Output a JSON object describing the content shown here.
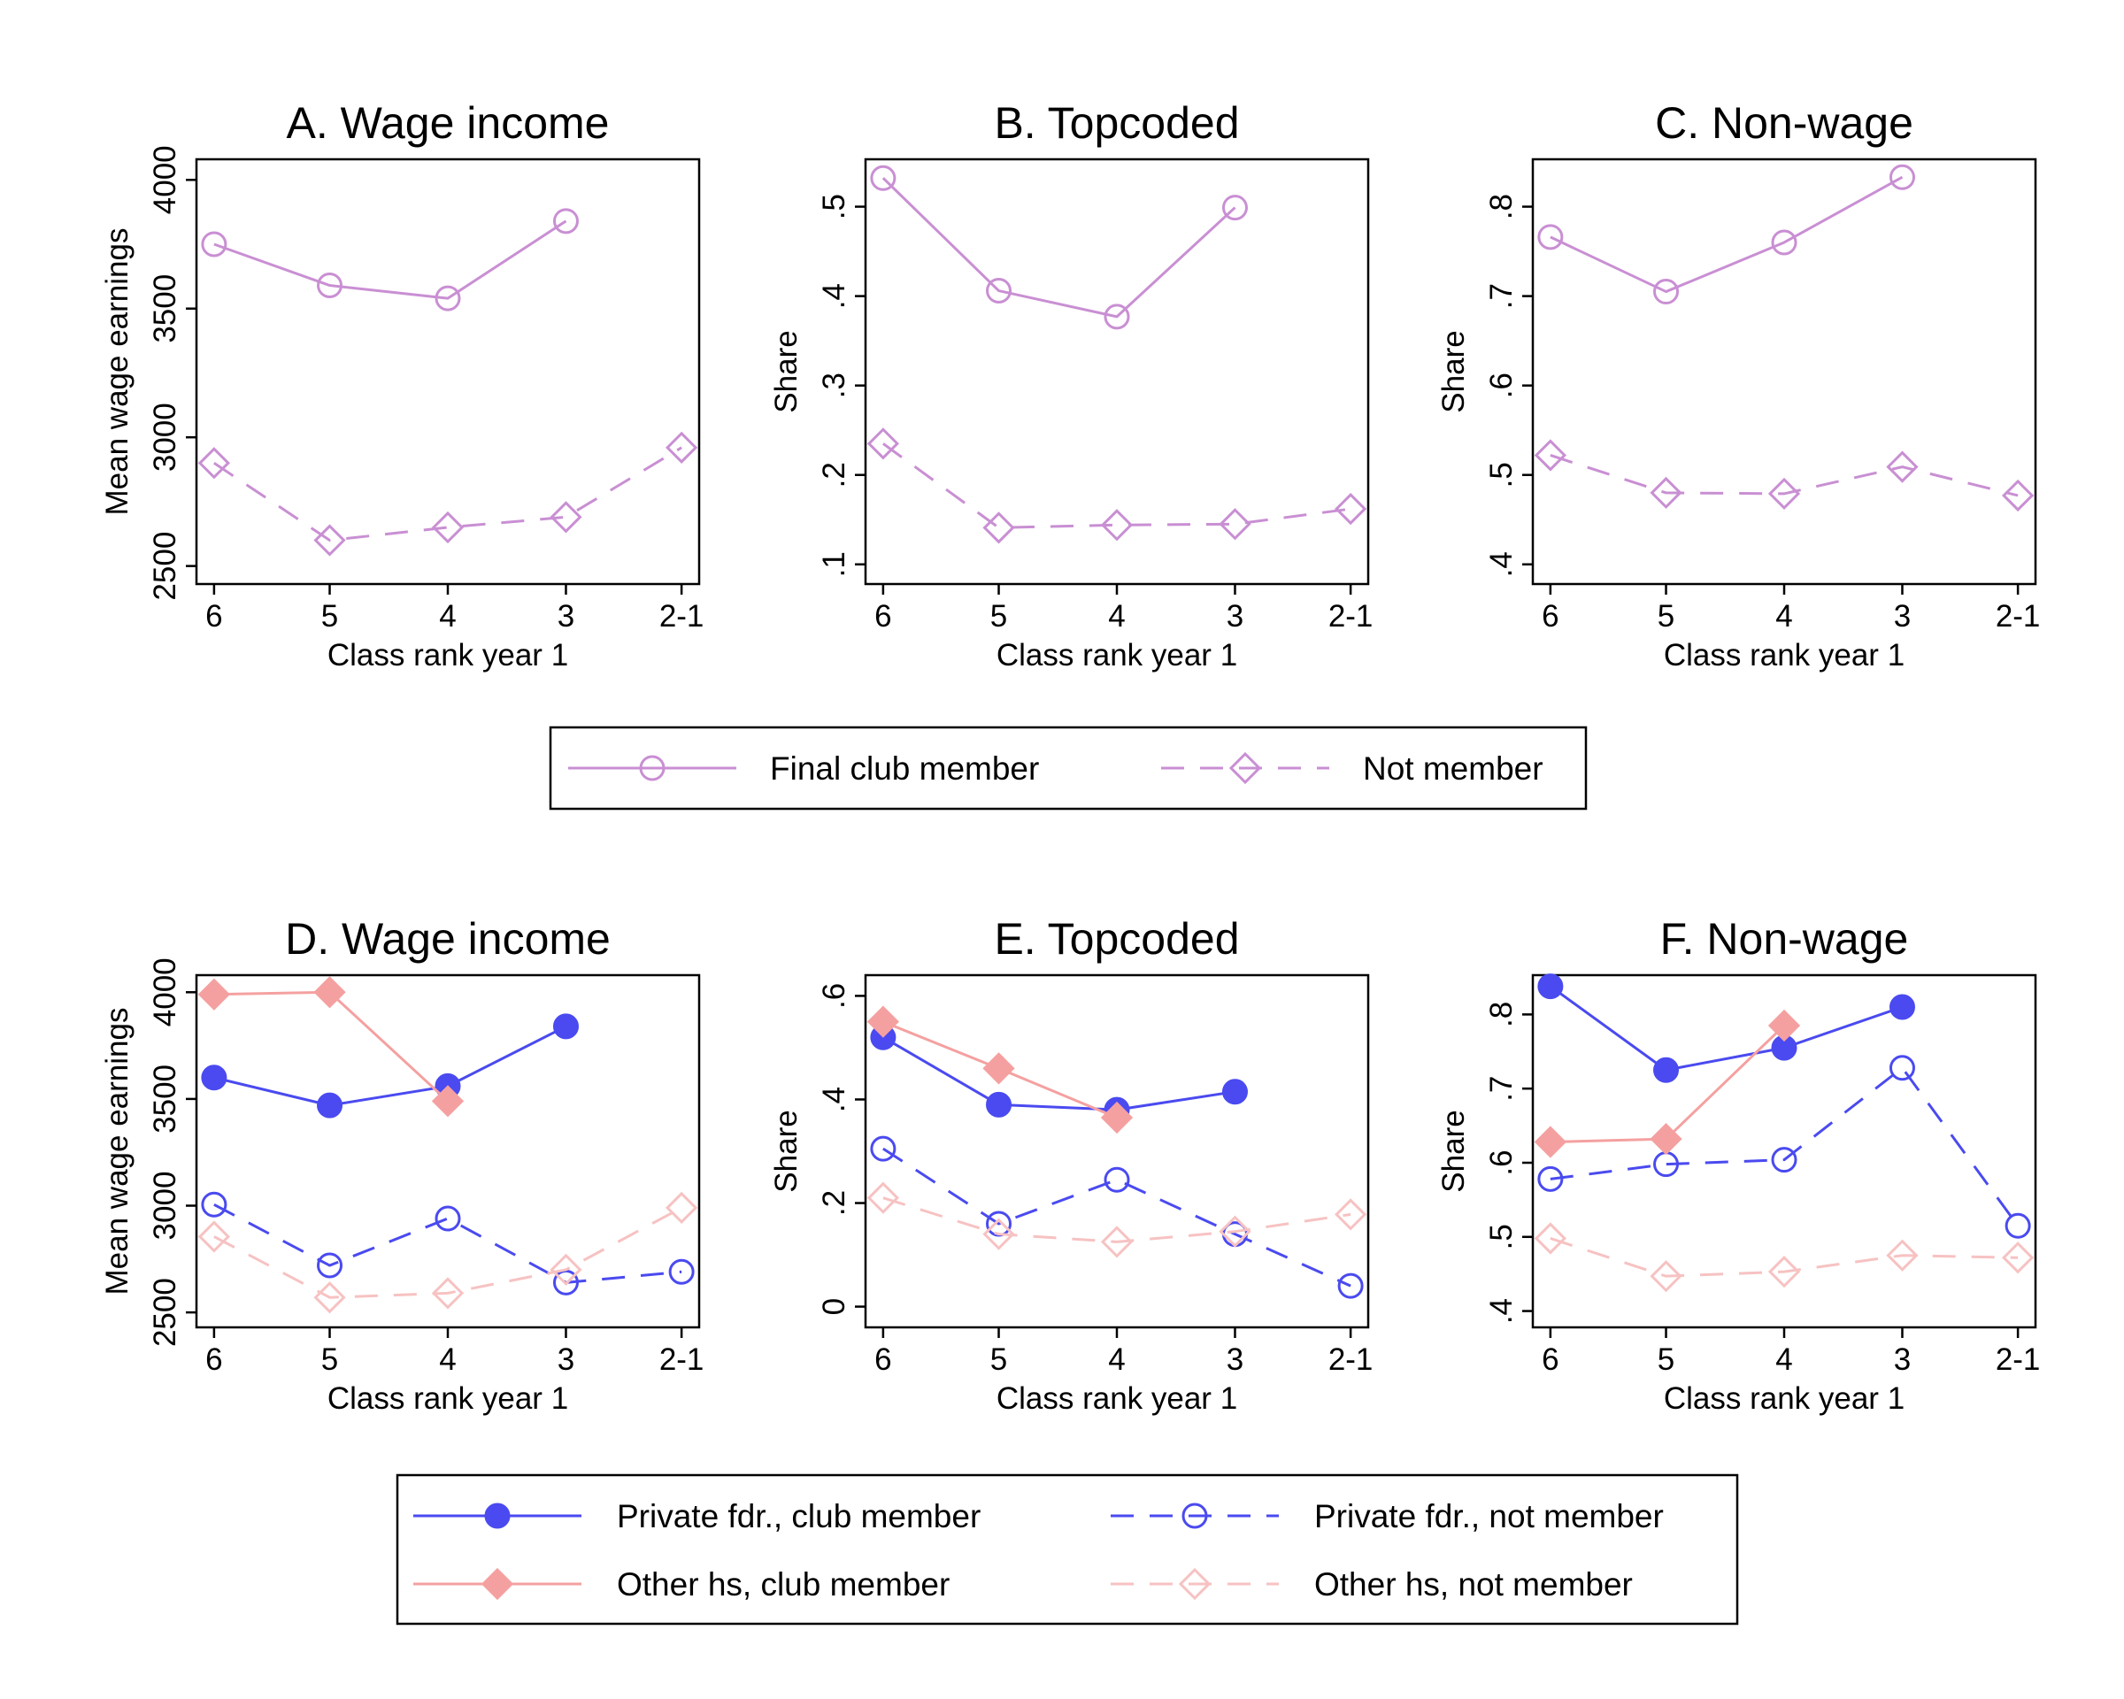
{
  "colors": {
    "violet": "#c98fd3",
    "blue": "#4a4af0",
    "pink": "#f5a0a0",
    "pink_light": "#f7c2c2"
  },
  "shared_x_categories": [
    "6",
    "5",
    "4",
    "3",
    "2-1"
  ],
  "chart_data": [
    {
      "type": "line",
      "title": "A. Wage income",
      "xlabel": "Class rank year 1",
      "ylabel": "Mean wage earnings",
      "categories": [
        "6",
        "5",
        "4",
        "3",
        "2-1"
      ],
      "ylim": [
        2430,
        4080
      ],
      "yticks": [
        2500,
        3000,
        3500,
        4000
      ],
      "ytick_labels": [
        "2500",
        "3000",
        "3500",
        "4000"
      ],
      "grid": false,
      "series": [
        {
          "name": "Final club member",
          "color": "violet",
          "dash": "solid",
          "marker": "circle-open",
          "values": [
            3750,
            3590,
            3540,
            3840,
            null
          ]
        },
        {
          "name": "Not member",
          "color": "violet",
          "dash": "dashed",
          "marker": "diamond-open",
          "values": [
            2900,
            2600,
            2650,
            2690,
            2960
          ]
        }
      ]
    },
    {
      "type": "line",
      "title": "B. Topcoded",
      "xlabel": "Class rank year 1",
      "ylabel": "Share",
      "categories": [
        "6",
        "5",
        "4",
        "3",
        "2-1"
      ],
      "ylim": [
        0.078,
        0.553
      ],
      "yticks": [
        0.1,
        0.2,
        0.3,
        0.4,
        0.5
      ],
      "ytick_labels": [
        ".1",
        ".2",
        ".3",
        ".4",
        ".5"
      ],
      "grid": false,
      "series": [
        {
          "name": "Final club member",
          "color": "violet",
          "dash": "solid",
          "marker": "circle-open",
          "values": [
            0.532,
            0.406,
            0.377,
            0.499,
            null
          ]
        },
        {
          "name": "Not member",
          "color": "violet",
          "dash": "dashed",
          "marker": "diamond-open",
          "values": [
            0.235,
            0.141,
            0.144,
            0.145,
            0.162
          ]
        }
      ]
    },
    {
      "type": "line",
      "title": "C. Non-wage",
      "xlabel": "Class rank year 1",
      "ylabel": "Share",
      "categories": [
        "6",
        "5",
        "4",
        "3",
        "2-1"
      ],
      "ylim": [
        0.378,
        0.853
      ],
      "yticks": [
        0.4,
        0.5,
        0.6,
        0.7,
        0.8
      ],
      "ytick_labels": [
        ".4",
        ".5",
        ".6",
        ".7",
        ".8"
      ],
      "grid": false,
      "series": [
        {
          "name": "Final club member",
          "color": "violet",
          "dash": "solid",
          "marker": "circle-open",
          "values": [
            0.766,
            0.705,
            0.76,
            0.833,
            null
          ]
        },
        {
          "name": "Not member",
          "color": "violet",
          "dash": "dashed",
          "marker": "diamond-open",
          "values": [
            0.522,
            0.48,
            0.479,
            0.509,
            0.477
          ]
        }
      ]
    },
    {
      "type": "line",
      "title": "D. Wage income",
      "xlabel": "Class rank year 1",
      "ylabel": "Mean wage earnings",
      "categories": [
        "6",
        "5",
        "4",
        "3",
        "2-1"
      ],
      "ylim": [
        2430,
        4080
      ],
      "yticks": [
        2500,
        3000,
        3500,
        4000
      ],
      "ytick_labels": [
        "2500",
        "3000",
        "3500",
        "4000"
      ],
      "grid": false,
      "series": [
        {
          "name": "Private fdr., club member",
          "color": "blue",
          "dash": "solid",
          "marker": "circle-filled",
          "values": [
            3600,
            3470,
            3560,
            3840,
            null
          ]
        },
        {
          "name": "Private fdr., not member",
          "color": "blue",
          "dash": "dashed",
          "marker": "circle-open",
          "values": [
            3005,
            2720,
            2940,
            2640,
            2690
          ]
        },
        {
          "name": "Other hs, club member",
          "color": "pink",
          "dash": "solid",
          "marker": "diamond-filled",
          "values": [
            3990,
            4000,
            3490,
            null,
            null
          ]
        },
        {
          "name": "Other hs, not member",
          "color": "pink_light",
          "dash": "dashed",
          "marker": "diamond-open",
          "values": [
            2855,
            2570,
            2590,
            2700,
            2990
          ]
        }
      ]
    },
    {
      "type": "line",
      "title": "E. Topcoded",
      "xlabel": "Class rank year 1",
      "ylabel": "Share",
      "categories": [
        "6",
        "5",
        "4",
        "3",
        "2-1"
      ],
      "ylim": [
        -0.04,
        0.64
      ],
      "yticks": [
        0,
        0.2,
        0.4,
        0.6
      ],
      "ytick_labels": [
        "0",
        ".2",
        ".4",
        ".6"
      ],
      "grid": false,
      "series": [
        {
          "name": "Private fdr., club member",
          "color": "blue",
          "dash": "solid",
          "marker": "circle-filled",
          "values": [
            0.52,
            0.39,
            0.38,
            0.415,
            null
          ]
        },
        {
          "name": "Private fdr., not member",
          "color": "blue",
          "dash": "dashed",
          "marker": "circle-open",
          "values": [
            0.305,
            0.16,
            0.245,
            0.14,
            0.04
          ]
        },
        {
          "name": "Other hs, club member",
          "color": "pink",
          "dash": "solid",
          "marker": "diamond-filled",
          "values": [
            0.55,
            0.46,
            0.365,
            null,
            null
          ]
        },
        {
          "name": "Other hs, not member",
          "color": "pink_light",
          "dash": "dashed",
          "marker": "diamond-open",
          "values": [
            0.21,
            0.14,
            0.125,
            0.145,
            0.178
          ]
        }
      ]
    },
    {
      "type": "line",
      "title": "F. Non-wage",
      "xlabel": "Class rank year 1",
      "ylabel": "Share",
      "categories": [
        "6",
        "5",
        "4",
        "3",
        "2-1"
      ],
      "ylim": [
        0.378,
        0.853
      ],
      "yticks": [
        0.4,
        0.5,
        0.6,
        0.7,
        0.8
      ],
      "ytick_labels": [
        ".4",
        ".5",
        ".6",
        ".7",
        ".8"
      ],
      "grid": false,
      "series": [
        {
          "name": "Private fdr., club member",
          "color": "blue",
          "dash": "solid",
          "marker": "circle-filled",
          "values": [
            0.838,
            0.725,
            0.755,
            0.81,
            null
          ]
        },
        {
          "name": "Private fdr., not member",
          "color": "blue",
          "dash": "dashed",
          "marker": "circle-open",
          "values": [
            0.578,
            0.598,
            0.604,
            0.728,
            0.515
          ]
        },
        {
          "name": "Other hs, club member",
          "color": "pink",
          "dash": "solid",
          "marker": "diamond-filled",
          "values": [
            0.628,
            0.632,
            0.785,
            null,
            null
          ]
        },
        {
          "name": "Other hs, not member",
          "color": "pink_light",
          "dash": "dashed",
          "marker": "diamond-open",
          "values": [
            0.498,
            0.447,
            0.453,
            0.475,
            0.472
          ]
        }
      ]
    }
  ],
  "legends": [
    {
      "position": "below top row of panels",
      "entries": [
        {
          "label": "Final club member",
          "color": "violet",
          "dash": "solid",
          "marker": "circle-open"
        },
        {
          "label": "Not member",
          "color": "violet",
          "dash": "dashed",
          "marker": "diamond-open"
        }
      ]
    },
    {
      "position": "bottom",
      "entries": [
        {
          "label": "Private fdr., club member",
          "color": "blue",
          "dash": "solid",
          "marker": "circle-filled"
        },
        {
          "label": "Private fdr., not member",
          "color": "blue",
          "dash": "dashed",
          "marker": "circle-open"
        },
        {
          "label": "Other hs, club member",
          "color": "pink",
          "dash": "solid",
          "marker": "diamond-filled"
        },
        {
          "label": "Other hs, not member",
          "color": "pink_light",
          "dash": "dashed",
          "marker": "diamond-open"
        }
      ]
    }
  ]
}
